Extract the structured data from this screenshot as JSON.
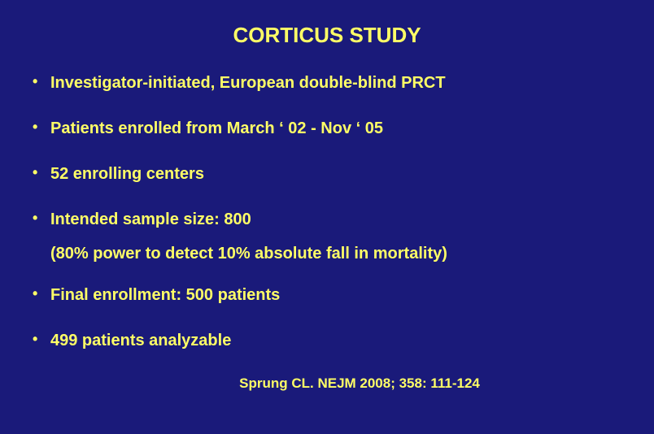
{
  "slide": {
    "title": "CORTICUS STUDY",
    "background_color": "#1a1a7a",
    "text_color": "#ffff66",
    "title_fontsize": 26,
    "body_fontsize": 20,
    "citation_fontsize": 17,
    "bullets": [
      "Investigator-initiated, European double-blind PRCT",
      "Patients enrolled from March ‘ 02 - Nov ‘ 05",
      "52 enrolling centers",
      "Intended sample size: 800",
      "Final enrollment: 500 patients",
      "499 patients analyzable"
    ],
    "subtext": "(80% power to detect 10% absolute fall in mortality)",
    "citation": "Sprung CL. NEJM 2008; 358: 111-124"
  }
}
